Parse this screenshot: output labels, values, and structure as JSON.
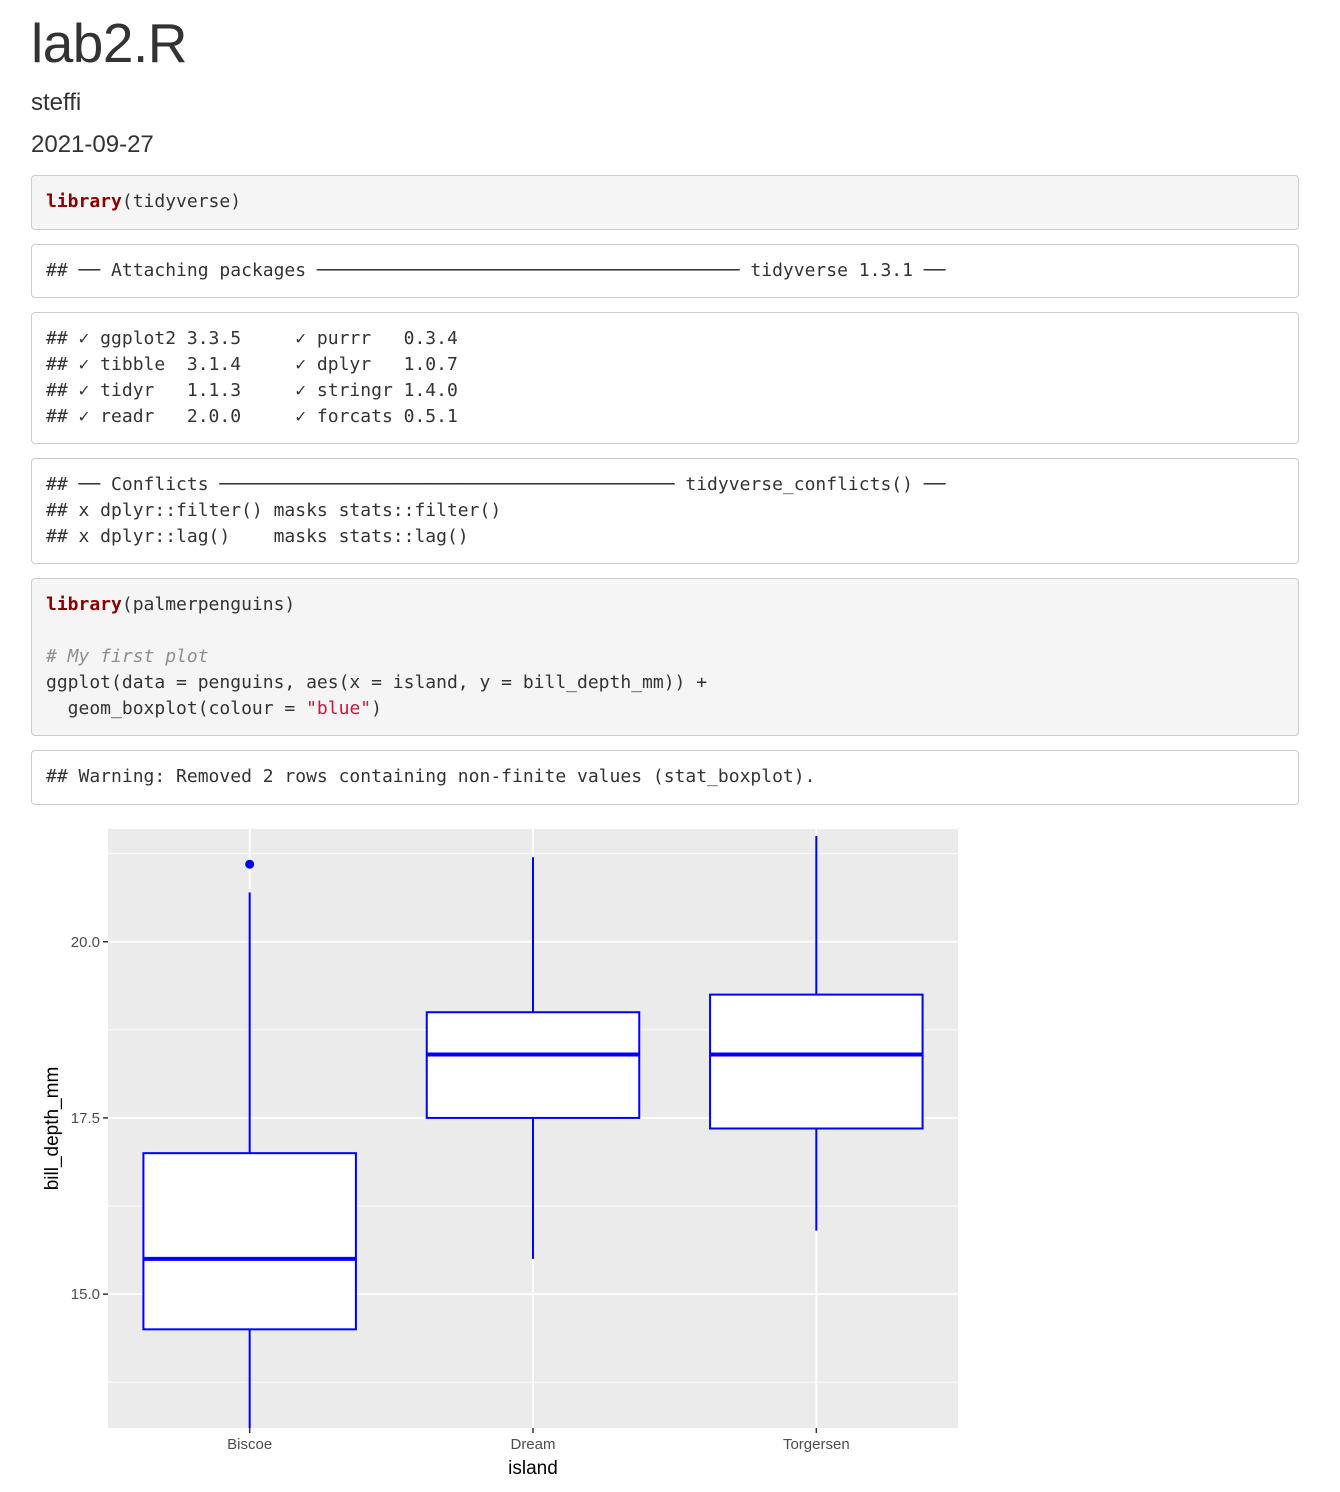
{
  "document": {
    "title": "lab2.R",
    "author": "steffi",
    "date": "2021-09-27"
  },
  "blocks": [
    {
      "kind": "code",
      "lines": [
        [
          {
            "t": "kw",
            "v": "library"
          },
          {
            "t": "txt",
            "v": "(tidyverse)"
          }
        ]
      ]
    },
    {
      "kind": "output",
      "lines": [
        [
          {
            "t": "txt",
            "v": "## ── Attaching packages ─────────────────────────────────────── tidyverse 1.3.1 ──"
          }
        ]
      ]
    },
    {
      "kind": "output",
      "lines": [
        [
          {
            "t": "txt",
            "v": "## ✓ ggplot2 3.3.5     ✓ purrr   0.3.4"
          }
        ],
        [
          {
            "t": "txt",
            "v": "## ✓ tibble  3.1.4     ✓ dplyr   1.0.7"
          }
        ],
        [
          {
            "t": "txt",
            "v": "## ✓ tidyr   1.1.3     ✓ stringr 1.4.0"
          }
        ],
        [
          {
            "t": "txt",
            "v": "## ✓ readr   2.0.0     ✓ forcats 0.5.1"
          }
        ]
      ]
    },
    {
      "kind": "output",
      "lines": [
        [
          {
            "t": "txt",
            "v": "## ── Conflicts ────────────────────────────────────────── tidyverse_conflicts() ──"
          }
        ],
        [
          {
            "t": "txt",
            "v": "## x dplyr::filter() masks stats::filter()"
          }
        ],
        [
          {
            "t": "txt",
            "v": "## x dplyr::lag()    masks stats::lag()"
          }
        ]
      ]
    },
    {
      "kind": "code",
      "lines": [
        [
          {
            "t": "kw",
            "v": "library"
          },
          {
            "t": "txt",
            "v": "(palmerpenguins)"
          }
        ],
        [
          {
            "t": "txt",
            "v": ""
          }
        ],
        [
          {
            "t": "cm",
            "v": "# My first plot"
          }
        ],
        [
          {
            "t": "txt",
            "v": "ggplot(data = penguins, aes(x = island, y = bill_depth_mm)) +"
          }
        ],
        [
          {
            "t": "txt",
            "v": "  geom_boxplot(colour = "
          },
          {
            "t": "st",
            "v": "\"blue\""
          },
          {
            "t": "txt",
            "v": ")"
          }
        ]
      ]
    },
    {
      "kind": "output",
      "lines": [
        [
          {
            "t": "txt",
            "v": "## Warning: Removed 2 rows containing non-finite values (stat_boxplot)."
          }
        ]
      ]
    }
  ],
  "chart_data": {
    "type": "boxplot",
    "xlabel": "island",
    "ylabel": "bill_depth_mm",
    "categories": [
      "Biscoe",
      "Dream",
      "Torgersen"
    ],
    "ylim": [
      13.1,
      21.6
    ],
    "yticks": [
      15.0,
      17.5,
      20.0
    ],
    "ytick_labels": [
      "15.0",
      "17.5",
      "20.0"
    ],
    "colour": "#0000ff",
    "panel_background": "#ebebeb",
    "grid": true,
    "boxes": [
      {
        "category": "Biscoe",
        "lower_whisker": 13.1,
        "q1": 14.5,
        "median": 15.5,
        "q3": 17.0,
        "upper_whisker": 20.7,
        "outliers": [
          21.1
        ]
      },
      {
        "category": "Dream",
        "lower_whisker": 15.5,
        "q1": 17.5,
        "median": 18.4,
        "q3": 19.0,
        "upper_whisker": 21.2,
        "outliers": []
      },
      {
        "category": "Torgersen",
        "lower_whisker": 15.9,
        "q1": 17.35,
        "median": 18.4,
        "q3": 19.25,
        "upper_whisker": 21.5,
        "outliers": []
      }
    ]
  }
}
